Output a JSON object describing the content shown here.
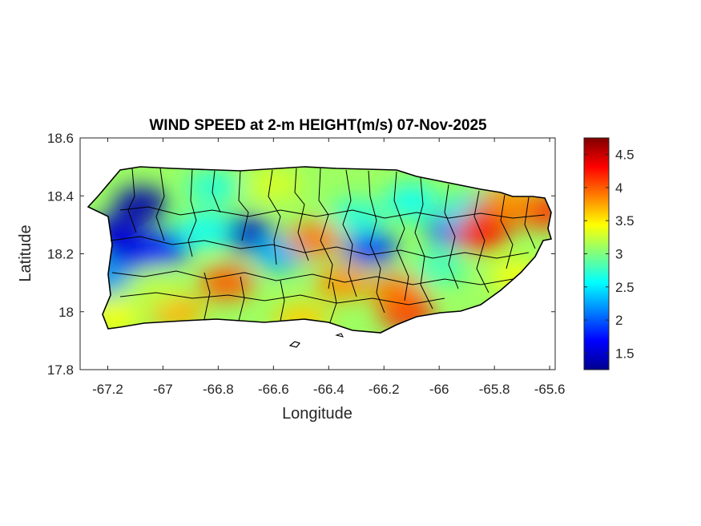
{
  "chart_data": {
    "type": "heatmap",
    "title": "WIND SPEED at 2-m HEIGHT(m/s) 07-Nov-2025",
    "xlabel": "Longitude",
    "ylabel": "Latitude",
    "xlim": [
      -67.3,
      -65.58
    ],
    "ylim": [
      17.8,
      18.6
    ],
    "x_ticks": [
      -67.2,
      -67,
      -66.8,
      -66.6,
      -66.4,
      -66.2,
      -66,
      -65.8,
      -65.6
    ],
    "x_tick_labels": [
      "-67.2",
      "-67",
      "-66.8",
      "-66.6",
      "-66.4",
      "-66.2",
      "-66",
      "-65.8",
      "-65.6"
    ],
    "y_ticks": [
      17.8,
      18,
      18.2,
      18.4,
      18.6
    ],
    "y_tick_labels": [
      "17.8",
      "18",
      "18.2",
      "18.4",
      "18.6"
    ],
    "colormap": "jet",
    "colorbar": {
      "range": [
        1.25,
        4.75
      ],
      "ticks": [
        1.5,
        2,
        2.5,
        3,
        3.5,
        4,
        4.5
      ],
      "tick_labels": [
        "1.5",
        "2",
        "2.5",
        "3",
        "3.5",
        "4",
        "4.5"
      ]
    },
    "background_value": 3.1,
    "features": [
      {
        "lon": -67.08,
        "lat": 18.37,
        "value": 1.4
      },
      {
        "lon": -67.17,
        "lat": 18.27,
        "value": 1.5
      },
      {
        "lon": -67.12,
        "lat": 18.2,
        "value": 1.6
      },
      {
        "lon": -67.0,
        "lat": 18.22,
        "value": 1.8
      },
      {
        "lon": -67.22,
        "lat": 18.12,
        "value": 2.2
      },
      {
        "lon": -66.7,
        "lat": 18.27,
        "value": 1.5
      },
      {
        "lon": -66.85,
        "lat": 18.28,
        "value": 2.6
      },
      {
        "lon": -66.58,
        "lat": 18.2,
        "value": 2.3
      },
      {
        "lon": -66.82,
        "lat": 18.43,
        "value": 2.7
      },
      {
        "lon": -66.25,
        "lat": 18.22,
        "value": 1.9
      },
      {
        "lon": -66.3,
        "lat": 18.33,
        "value": 2.7
      },
      {
        "lon": -65.95,
        "lat": 18.28,
        "value": 2.1
      },
      {
        "lon": -66.1,
        "lat": 18.38,
        "value": 2.6
      },
      {
        "lon": -65.88,
        "lat": 18.35,
        "value": 2.5
      },
      {
        "lon": -66.0,
        "lat": 18.15,
        "value": 2.8
      },
      {
        "lon": -66.12,
        "lat": 18.0,
        "value": 4.3
      },
      {
        "lon": -66.15,
        "lat": 18.07,
        "value": 3.9
      },
      {
        "lon": -65.8,
        "lat": 18.33,
        "value": 4.5
      },
      {
        "lon": -65.85,
        "lat": 18.27,
        "value": 4.2
      },
      {
        "lon": -65.63,
        "lat": 18.35,
        "value": 4.2
      },
      {
        "lon": -65.75,
        "lat": 18.38,
        "value": 3.8
      },
      {
        "lon": -66.77,
        "lat": 18.1,
        "value": 4.0
      },
      {
        "lon": -66.95,
        "lat": 18.0,
        "value": 3.7
      },
      {
        "lon": -66.45,
        "lat": 18.25,
        "value": 3.9
      },
      {
        "lon": -66.35,
        "lat": 18.1,
        "value": 3.8
      },
      {
        "lon": -66.5,
        "lat": 17.97,
        "value": 3.6
      },
      {
        "lon": -67.18,
        "lat": 17.98,
        "value": 3.4
      },
      {
        "lon": -66.6,
        "lat": 18.44,
        "value": 3.3
      },
      {
        "lon": -67.03,
        "lat": 18.08,
        "value": 3.2
      },
      {
        "lon": -65.72,
        "lat": 18.12,
        "value": 3.4
      }
    ]
  }
}
